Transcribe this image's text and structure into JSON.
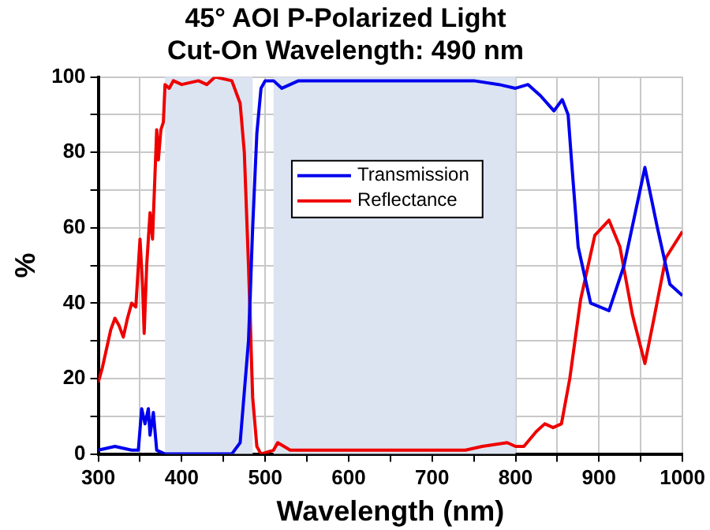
{
  "chart_data": {
    "type": "line",
    "title": "45° AOI P-Polarized Light\nCut-On Wavelength: 490 nm",
    "xlabel": "Wavelength (nm)",
    "ylabel": "%",
    "xlim": [
      300,
      1000
    ],
    "xticks": [
      300,
      {
        "value": 350,
        "label": null
      },
      400,
      {
        "value": 450,
        "label": null
      },
      500,
      {
        "value": 550,
        "label": null
      },
      600,
      {
        "value": 650,
        "label": null
      },
      700,
      {
        "value": 750,
        "label": null
      },
      800,
      {
        "value": 850,
        "label": null
      },
      900,
      {
        "value": 950,
        "label": null
      },
      1000
    ],
    "ylim": [
      0,
      100
    ],
    "yticks": [
      0,
      {
        "value": 10,
        "label": null
      },
      20,
      {
        "value": 30,
        "label": null
      },
      40,
      {
        "value": 50,
        "label": null
      },
      60,
      {
        "value": 70,
        "label": null
      },
      80,
      {
        "value": 90,
        "label": null
      },
      100
    ],
    "grid": true,
    "legend": "top",
    "line_style": "solid",
    "marker": "none",
    "bands": [
      {
        "axis": "x",
        "from": 380,
        "to": 485,
        "color": "#dce4f2"
      },
      {
        "axis": "x",
        "from": 510,
        "to": 800,
        "color": "#dce4f2"
      }
    ],
    "series": [
      {
        "name": "Transmission",
        "color": "#0000ee",
        "x": [
          300,
          320,
          340,
          348,
          352,
          356,
          360,
          362,
          366,
          370,
          380,
          460,
          470,
          480,
          485,
          490,
          495,
          500,
          510,
          520,
          540,
          600,
          700,
          750,
          780,
          800,
          815,
          830,
          846,
          856,
          863,
          867,
          875,
          890,
          912,
          930,
          955,
          970,
          985,
          1000
        ],
        "values": [
          1,
          2,
          1,
          1,
          12,
          8,
          12,
          5,
          11,
          1,
          0,
          0,
          3,
          30,
          60,
          85,
          97,
          99,
          99,
          97,
          99,
          99,
          99,
          99,
          98,
          97,
          98,
          95,
          91,
          94,
          90,
          78,
          55,
          40,
          38,
          50,
          76,
          60,
          45,
          42
        ]
      },
      {
        "name": "Reflectance",
        "color": "#ee0000",
        "x": [
          300,
          305,
          310,
          315,
          320,
          325,
          330,
          335,
          340,
          345,
          350,
          353,
          355,
          358,
          362,
          365,
          370,
          372,
          375,
          378,
          380,
          385,
          390,
          400,
          420,
          430,
          440,
          460,
          470,
          475,
          480,
          485,
          490,
          495,
          510,
          515,
          530,
          600,
          700,
          740,
          760,
          790,
          800,
          810,
          825,
          835,
          845,
          855,
          865,
          878,
          895,
          912,
          925,
          940,
          955,
          965,
          980,
          1000
        ],
        "values": [
          19,
          23,
          28,
          33,
          36,
          34,
          31,
          36,
          40,
          39,
          57,
          45,
          32,
          50,
          64,
          57,
          86,
          78,
          86,
          88,
          98,
          97,
          99,
          98,
          99,
          98,
          100,
          99,
          93,
          80,
          50,
          15,
          2,
          0,
          1,
          3,
          1,
          1,
          1,
          1,
          2,
          3,
          2,
          2,
          6,
          8,
          7,
          8,
          20,
          41,
          58,
          62,
          55,
          37,
          24,
          35,
          52,
          59
        ]
      }
    ]
  }
}
